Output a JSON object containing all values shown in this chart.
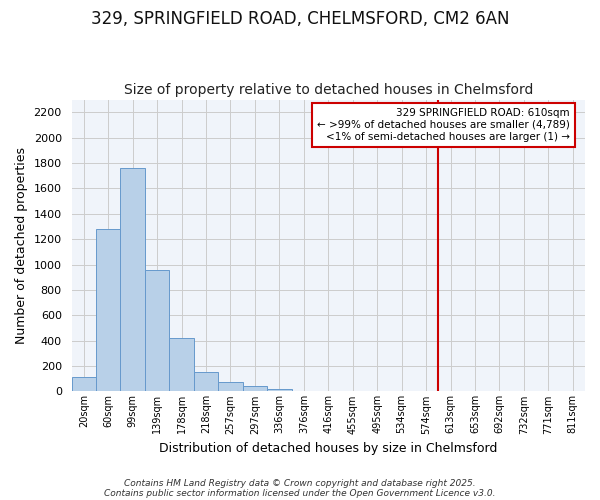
{
  "title": "329, SPRINGFIELD ROAD, CHELMSFORD, CM2 6AN",
  "subtitle": "Size of property relative to detached houses in Chelmsford",
  "xlabel": "Distribution of detached houses by size in Chelmsford",
  "ylabel": "Number of detached properties",
  "categories": [
    "20sqm",
    "60sqm",
    "99sqm",
    "139sqm",
    "178sqm",
    "218sqm",
    "257sqm",
    "297sqm",
    "336sqm",
    "376sqm",
    "416sqm",
    "455sqm",
    "495sqm",
    "534sqm",
    "574sqm",
    "613sqm",
    "653sqm",
    "692sqm",
    "732sqm",
    "771sqm",
    "811sqm"
  ],
  "values": [
    110,
    1280,
    1760,
    960,
    420,
    150,
    75,
    40,
    20,
    0,
    0,
    0,
    0,
    0,
    0,
    0,
    0,
    0,
    0,
    0,
    0
  ],
  "bar_color": "#b8d0e8",
  "bar_edgecolor": "#6699cc",
  "highlight_index": 15,
  "highlight_color": "#ddeaf7",
  "red_line_color": "#cc0000",
  "ylim": [
    0,
    2300
  ],
  "yticks": [
    0,
    200,
    400,
    600,
    800,
    1000,
    1200,
    1400,
    1600,
    1800,
    2000,
    2200
  ],
  "annotation_title": "329 SPRINGFIELD ROAD: 610sqm",
  "annotation_line1": "← >99% of detached houses are smaller (4,789)",
  "annotation_line2": "<1% of semi-detached houses are larger (1) →",
  "annotation_box_color": "#ffffff",
  "annotation_border_color": "#cc0000",
  "footnote1": "Contains HM Land Registry data © Crown copyright and database right 2025.",
  "footnote2": "Contains public sector information licensed under the Open Government Licence v3.0.",
  "bg_color": "#ffffff",
  "grid_color": "#cccccc",
  "title_fontsize": 12,
  "subtitle_fontsize": 10,
  "axis_bg_color": "#f0f4fa"
}
